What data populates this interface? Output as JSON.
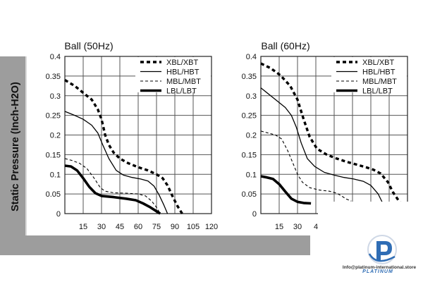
{
  "chart_data": [
    {
      "type": "line",
      "title": "Ball (50Hz)",
      "ylabel": "Static Pressure (Inch-H2O)",
      "xlabel": "",
      "xlim": [
        0,
        120
      ],
      "ylim": [
        0,
        0.4
      ],
      "x_ticks": [
        15,
        30,
        45,
        60,
        75,
        90,
        105,
        120
      ],
      "y_ticks": [
        "0",
        "0.05",
        "0.1",
        "0.15",
        "0.2",
        "0.25",
        "0.3",
        "0.35",
        "0.4"
      ],
      "grid": true,
      "legend_position": "top-right",
      "series": [
        {
          "name": "XBL/XBT",
          "style": "dotted-bold",
          "points": [
            [
              0,
              0.34
            ],
            [
              8,
              0.325
            ],
            [
              16,
              0.305
            ],
            [
              22,
              0.29
            ],
            [
              27,
              0.265
            ],
            [
              30,
              0.24
            ],
            [
              33,
              0.2
            ],
            [
              36,
              0.175
            ],
            [
              40,
              0.155
            ],
            [
              45,
              0.14
            ],
            [
              52,
              0.128
            ],
            [
              60,
              0.118
            ],
            [
              68,
              0.11
            ],
            [
              75,
              0.1
            ],
            [
              80,
              0.09
            ],
            [
              84,
              0.072
            ],
            [
              88,
              0.045
            ],
            [
              92,
              0.02
            ],
            [
              96,
              0
            ]
          ]
        },
        {
          "name": "HBL/HBT",
          "style": "solid",
          "points": [
            [
              0,
              0.26
            ],
            [
              8,
              0.25
            ],
            [
              15,
              0.24
            ],
            [
              22,
              0.225
            ],
            [
              27,
              0.205
            ],
            [
              31,
              0.175
            ],
            [
              36,
              0.14
            ],
            [
              42,
              0.11
            ],
            [
              48,
              0.098
            ],
            [
              55,
              0.092
            ],
            [
              62,
              0.088
            ],
            [
              68,
              0.083
            ],
            [
              73,
              0.07
            ],
            [
              77,
              0.048
            ],
            [
              81,
              0.022
            ],
            [
              84,
              0
            ]
          ]
        },
        {
          "name": "MBL/MBT",
          "style": "dashed",
          "points": [
            [
              0,
              0.14
            ],
            [
              6,
              0.135
            ],
            [
              12,
              0.128
            ],
            [
              18,
              0.115
            ],
            [
              24,
              0.09
            ],
            [
              29,
              0.066
            ],
            [
              33,
              0.057
            ],
            [
              40,
              0.053
            ],
            [
              50,
              0.052
            ],
            [
              60,
              0.05
            ],
            [
              66,
              0.045
            ],
            [
              71,
              0.032
            ],
            [
              75,
              0.016
            ],
            [
              78,
              0
            ]
          ]
        },
        {
          "name": "LBL/LBT",
          "style": "solid-bold",
          "points": [
            [
              0,
              0.122
            ],
            [
              5,
              0.12
            ],
            [
              10,
              0.11
            ],
            [
              15,
              0.09
            ],
            [
              20,
              0.068
            ],
            [
              25,
              0.052
            ],
            [
              30,
              0.045
            ],
            [
              40,
              0.042
            ],
            [
              50,
              0.038
            ],
            [
              58,
              0.034
            ],
            [
              64,
              0.026
            ],
            [
              70,
              0.016
            ],
            [
              75,
              0.006
            ],
            [
              78,
              0
            ]
          ]
        }
      ]
    },
    {
      "type": "line",
      "title": "Ball (60Hz)",
      "ylabel": "",
      "xlabel": "",
      "xlim": [
        0,
        120
      ],
      "ylim": [
        0,
        0.4
      ],
      "x_ticks": [
        15,
        30,
        4
      ],
      "y_ticks": [
        "0",
        "0.05",
        "0.1",
        "0.15",
        "0.2",
        "0.25",
        "0.3",
        "0.35",
        "0.4"
      ],
      "grid": true,
      "legend_position": "top-right",
      "series": [
        {
          "name": "XBL/XBT",
          "style": "dotted-bold",
          "points": [
            [
              0,
              0.382
            ],
            [
              8,
              0.37
            ],
            [
              16,
              0.352
            ],
            [
              24,
              0.325
            ],
            [
              30,
              0.29
            ],
            [
              35,
              0.24
            ],
            [
              40,
              0.195
            ],
            [
              46,
              0.165
            ],
            [
              54,
              0.15
            ],
            [
              62,
              0.14
            ],
            [
              70,
              0.132
            ],
            [
              78,
              0.125
            ],
            [
              86,
              0.118
            ],
            [
              92,
              0.112
            ],
            [
              98,
              0.102
            ],
            [
              104,
              0.08
            ],
            [
              108,
              0.055
            ],
            [
              113,
              0.032
            ],
            [
              117,
              0.018
            ]
          ]
        },
        {
          "name": "HBL/HBT",
          "style": "solid",
          "points": [
            [
              0,
              0.32
            ],
            [
              8,
              0.3
            ],
            [
              14,
              0.285
            ],
            [
              20,
              0.27
            ],
            [
              25,
              0.25
            ],
            [
              29,
              0.22
            ],
            [
              33,
              0.18
            ],
            [
              38,
              0.14
            ],
            [
              44,
              0.12
            ],
            [
              52,
              0.105
            ],
            [
              60,
              0.098
            ],
            [
              68,
              0.092
            ],
            [
              76,
              0.088
            ],
            [
              84,
              0.082
            ],
            [
              90,
              0.072
            ],
            [
              96,
              0.05
            ],
            [
              100,
              0.025
            ],
            [
              103,
              0.01
            ]
          ]
        },
        {
          "name": "MBL/MBT",
          "style": "dashed",
          "points": [
            [
              0,
              0.21
            ],
            [
              6,
              0.205
            ],
            [
              12,
              0.2
            ],
            [
              17,
              0.19
            ],
            [
              22,
              0.16
            ],
            [
              26,
              0.13
            ],
            [
              30,
              0.1
            ],
            [
              34,
              0.08
            ],
            [
              40,
              0.066
            ],
            [
              48,
              0.06
            ],
            [
              56,
              0.057
            ],
            [
              62,
              0.052
            ],
            [
              66,
              0.045
            ],
            [
              70,
              0.037
            ],
            [
              74,
              0.032
            ]
          ]
        },
        {
          "name": "LBL/LBT",
          "style": "solid-bold",
          "points": [
            [
              0,
              0.095
            ],
            [
              5,
              0.092
            ],
            [
              10,
              0.088
            ],
            [
              15,
              0.075
            ],
            [
              20,
              0.056
            ],
            [
              25,
              0.038
            ],
            [
              30,
              0.03
            ],
            [
              35,
              0.027
            ],
            [
              41,
              0.026
            ]
          ]
        }
      ]
    }
  ],
  "watermark": {
    "brand": "PLATINUM",
    "url": "Info@platinum-international.store"
  }
}
